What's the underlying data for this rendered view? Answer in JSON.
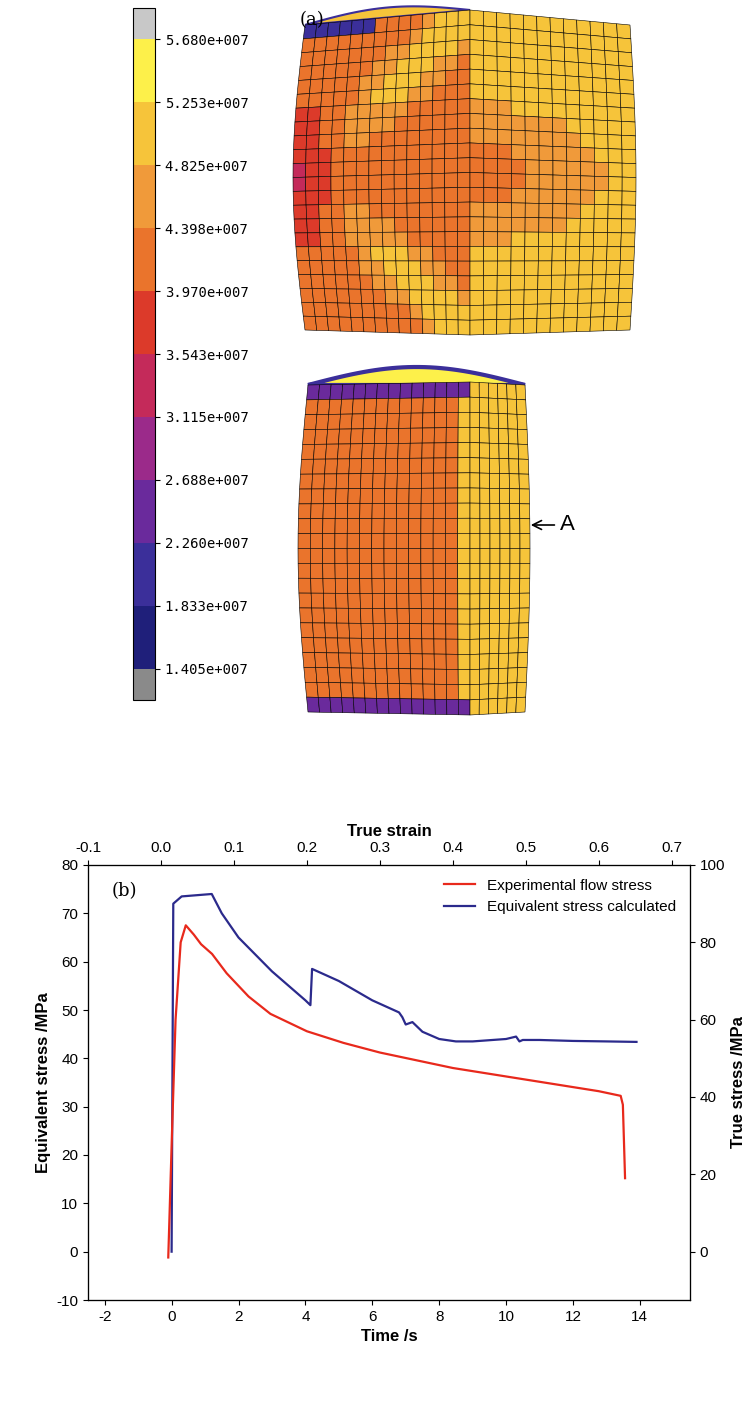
{
  "chart_data": [
    {
      "type": "contour",
      "label": "(a)",
      "annotations": [
        "A"
      ],
      "colorbar": {
        "range": [
          14050000,
          56800000
        ],
        "ticks": [
          {
            "value": 14050000,
            "label": "1.405e+007"
          },
          {
            "value": 18330000,
            "label": "1.833e+007"
          },
          {
            "value": 22600000,
            "label": "2.260e+007"
          },
          {
            "value": 26880000,
            "label": "2.688e+007"
          },
          {
            "value": 31150000,
            "label": "3.115e+007"
          },
          {
            "value": 35430000,
            "label": "3.543e+007"
          },
          {
            "value": 39700000,
            "label": "3.970e+007"
          },
          {
            "value": 43980000,
            "label": "4.398e+007"
          },
          {
            "value": 48250000,
            "label": "4.825e+007"
          },
          {
            "value": 52530000,
            "label": "5.253e+007"
          },
          {
            "value": 56800000,
            "label": "5.680e+007"
          }
        ],
        "colors": [
          "#1f1f7a",
          "#3b2f9a",
          "#6a2a9c",
          "#9b2a8a",
          "#c42a5a",
          "#dc3a2a",
          "#ea742c",
          "#f09a3a",
          "#f6c43a",
          "#fdf04a"
        ]
      }
    },
    {
      "type": "line",
      "label": "(b)",
      "xlabel": "Time /s",
      "x2label": "True strain",
      "ylabel": "Equivalent stress /MPa",
      "y2label": "True stress /MPa",
      "xlim": [
        -2.5,
        15.5
      ],
      "xticks": [
        -2,
        0,
        2,
        4,
        6,
        8,
        10,
        12,
        14
      ],
      "x2lim": [
        -0.1,
        0.725
      ],
      "x2ticks": [
        -0.1,
        0.0,
        0.1,
        0.2,
        0.3,
        0.4,
        0.5,
        0.6,
        0.7
      ],
      "ylim": [
        -10,
        80
      ],
      "yticks": [
        -10,
        0,
        10,
        20,
        30,
        40,
        50,
        60,
        70,
        80
      ],
      "y2lim": [
        -12.5,
        100
      ],
      "y2ticks": [
        0,
        20,
        40,
        60,
        80,
        100
      ],
      "legend": "upper right",
      "series": [
        {
          "name": "Experimental flow stress",
          "color": "#e8291c",
          "axis": "y2",
          "x": [
            0.01,
            0.015,
            0.02,
            0.027,
            0.034,
            0.045,
            0.055,
            0.07,
            0.09,
            0.12,
            0.15,
            0.2,
            0.25,
            0.3,
            0.35,
            0.4,
            0.45,
            0.5,
            0.55,
            0.6,
            0.63,
            0.633,
            0.636
          ],
          "values": [
            -1.5,
            30,
            60,
            80,
            84.4,
            82,
            79.5,
            77,
            72,
            66,
            61.5,
            57,
            54,
            51.5,
            49.5,
            47.5,
            46,
            44.5,
            43,
            41.5,
            40.3,
            38,
            19
          ]
        },
        {
          "name": "Equivalent stress calculated",
          "color": "#2b2a8c",
          "axis": "y",
          "x": [
            0,
            0.05,
            0.3,
            1.2,
            1.5,
            2,
            2.5,
            3,
            3.5,
            4,
            4.15,
            4.2,
            5,
            6,
            6.8,
            6.9,
            7.0,
            7.2,
            7.5,
            8,
            8.5,
            9,
            10,
            10.3,
            10.4,
            10.5,
            11,
            12,
            13,
            13.9
          ],
          "values": [
            0,
            72,
            73.5,
            74,
            70,
            65,
            61.5,
            58,
            55,
            52,
            51,
            58.5,
            56,
            52,
            49.5,
            48.5,
            47,
            47.5,
            45.5,
            44,
            43.5,
            43.5,
            44,
            44.5,
            43.5,
            43.8,
            43.8,
            43.6,
            43.5,
            43.4
          ]
        }
      ]
    }
  ]
}
